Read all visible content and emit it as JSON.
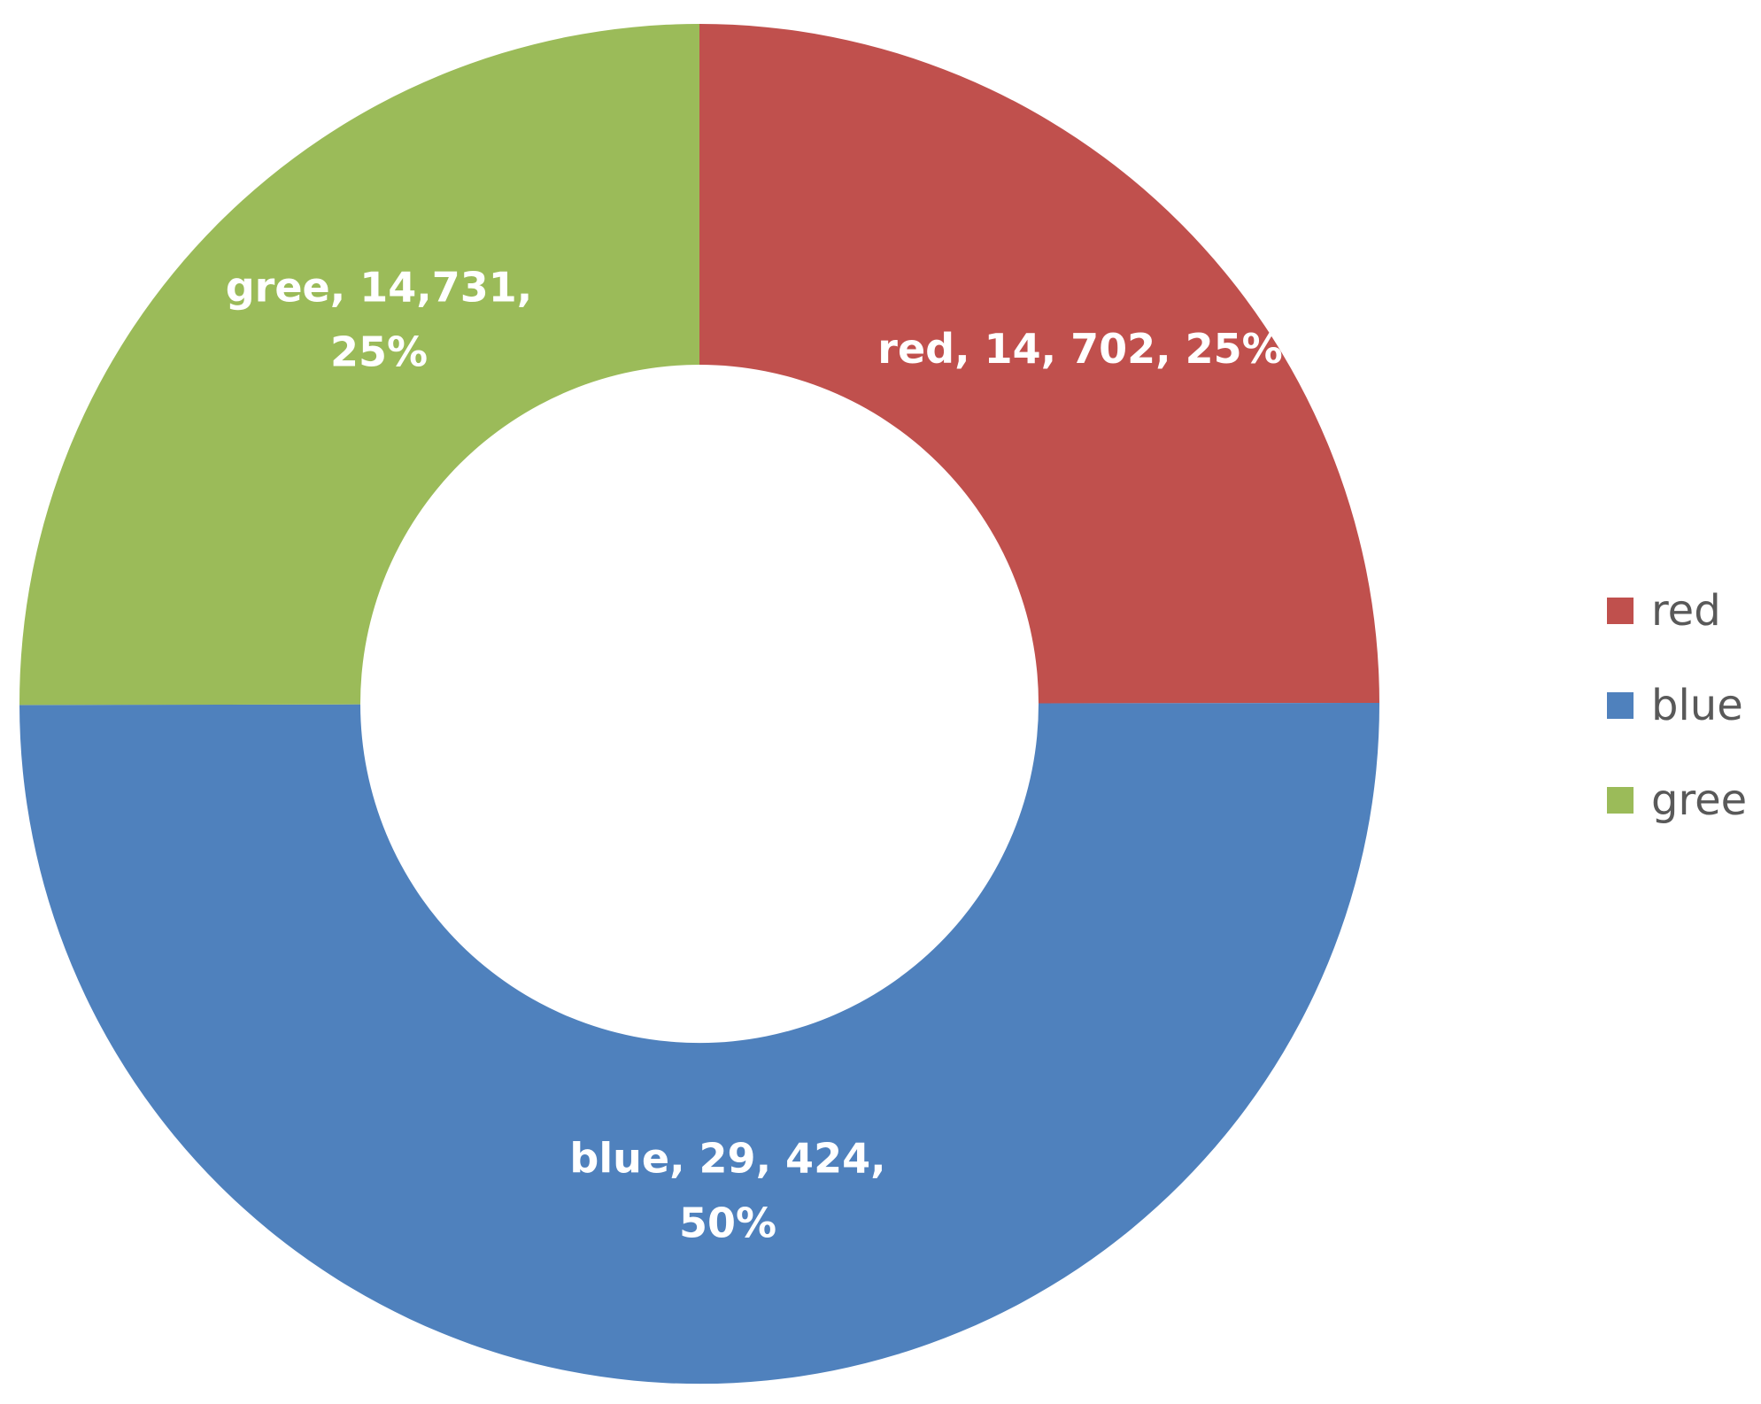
{
  "chart_data": {
    "type": "pie",
    "variant": "doughnut",
    "legend_position": "right",
    "slices": [
      {
        "name": "red",
        "value": 14702,
        "percent": 25,
        "color": "#C0504D",
        "label_lines": [
          "red, 14, 702, 25%"
        ]
      },
      {
        "name": "blue",
        "value": 29424,
        "percent": 50,
        "color": "#4F81BD",
        "label_lines": [
          "blue, 29, 424,",
          "50%"
        ]
      },
      {
        "name": "gree",
        "value": 14731,
        "percent": 25,
        "color": "#9BBB59",
        "label_lines": [
          "gree, 14,731,",
          "25%"
        ]
      }
    ],
    "legend": [
      {
        "label": "red",
        "color": "#C0504D"
      },
      {
        "label": "blue",
        "color": "#4F81BD"
      },
      {
        "label": "gree",
        "color": "#9BBB59"
      }
    ]
  }
}
